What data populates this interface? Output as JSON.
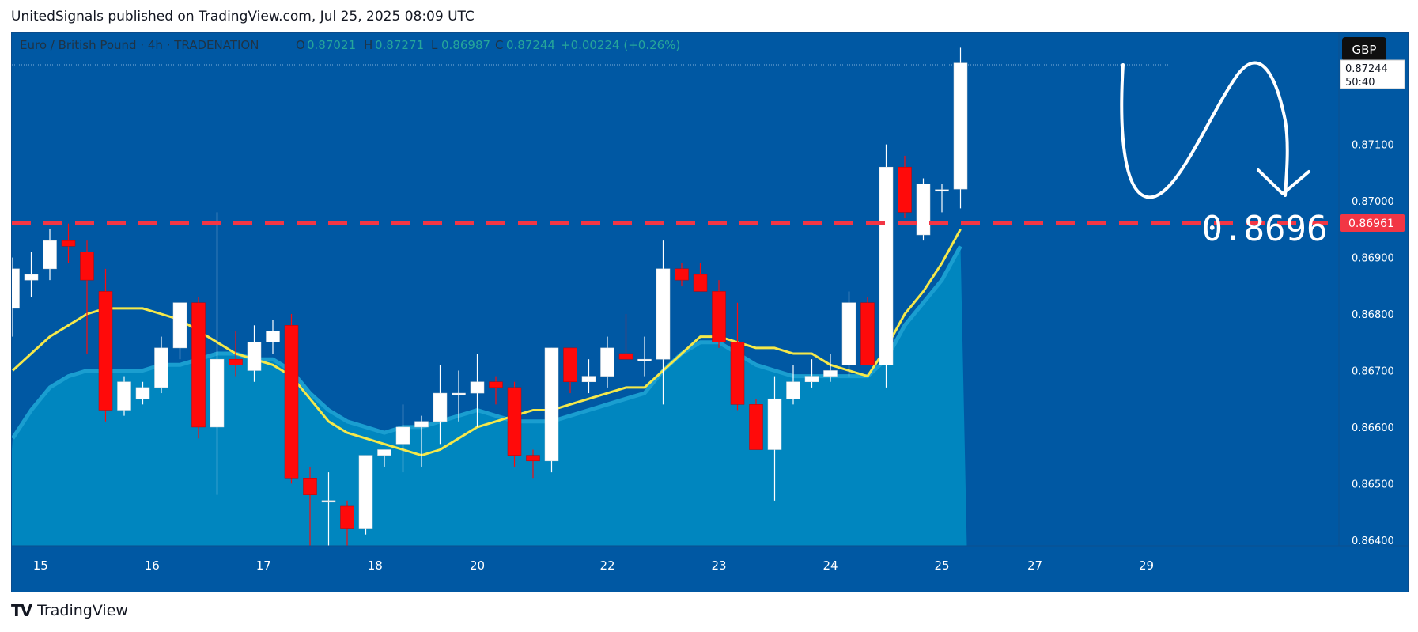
{
  "header": {
    "published_text": "UnitedSignals published on TradingView.com, Jul 25, 2025 08:09 UTC"
  },
  "legend": {
    "symbol": "Euro / British Pound · 4h · TRADENATION",
    "o_label": "O",
    "o_value": "0.87021",
    "h_label": "H",
    "h_value": "0.87271",
    "l_label": "L",
    "l_value": "0.86987",
    "c_label": "C",
    "c_value": "0.87244",
    "change": "+0.00224 (+0.26%)"
  },
  "currency_button": "GBP",
  "price_tag": {
    "price": "0.87244",
    "countdown": "50:40"
  },
  "level_tag": "0.86961",
  "annotation_text": "0.8696",
  "footer": {
    "logo_mark": "TV",
    "brand": "TradingView"
  },
  "colors": {
    "background": "#0058a3",
    "up_candle": "#ffffff",
    "down_candle": "#ff0a0a",
    "ma_line": "#f5e84a",
    "area_fill": "#0086bf",
    "area_line": "#1a9ed0",
    "level_line": "#f23645",
    "text_on_chart": "#1f3344",
    "axis_text": "#ffffff"
  },
  "chart_data": {
    "type": "candlestick",
    "y_ticks": [
      "0.86400",
      "0.86500",
      "0.86600",
      "0.86700",
      "0.86800",
      "0.86900",
      "0.87000",
      "0.87100"
    ],
    "ylim": [
      0.8639,
      0.8728
    ],
    "x_ticks": [
      "15",
      "16",
      "17",
      "18",
      "20",
      "22",
      "23",
      "24",
      "25",
      "27",
      "29"
    ],
    "candles": [
      {
        "o": 0.8681,
        "h": 0.869,
        "l": 0.8676,
        "c": 0.8688
      },
      {
        "o": 0.8686,
        "h": 0.8691,
        "l": 0.8683,
        "c": 0.8687
      },
      {
        "o": 0.8688,
        "h": 0.8695,
        "l": 0.8686,
        "c": 0.8693
      },
      {
        "o": 0.8693,
        "h": 0.8696,
        "l": 0.8689,
        "c": 0.8692
      },
      {
        "o": 0.8691,
        "h": 0.8693,
        "l": 0.8673,
        "c": 0.8686
      },
      {
        "o": 0.8684,
        "h": 0.8688,
        "l": 0.8661,
        "c": 0.8663
      },
      {
        "o": 0.8663,
        "h": 0.8669,
        "l": 0.8662,
        "c": 0.8668
      },
      {
        "o": 0.8665,
        "h": 0.8668,
        "l": 0.8664,
        "c": 0.8667
      },
      {
        "o": 0.8667,
        "h": 0.8676,
        "l": 0.8666,
        "c": 0.8674
      },
      {
        "o": 0.8674,
        "h": 0.8682,
        "l": 0.8672,
        "c": 0.8682
      },
      {
        "o": 0.8682,
        "h": 0.8683,
        "l": 0.8658,
        "c": 0.866
      },
      {
        "o": 0.866,
        "h": 0.8698,
        "l": 0.8648,
        "c": 0.8672
      },
      {
        "o": 0.8672,
        "h": 0.8677,
        "l": 0.8669,
        "c": 0.8671
      },
      {
        "o": 0.867,
        "h": 0.8678,
        "l": 0.8668,
        "c": 0.8675
      },
      {
        "o": 0.8675,
        "h": 0.8679,
        "l": 0.8673,
        "c": 0.8677
      },
      {
        "o": 0.8678,
        "h": 0.868,
        "l": 0.865,
        "c": 0.8651
      },
      {
        "o": 0.8651,
        "h": 0.8653,
        "l": 0.8639,
        "c": 0.8648
      },
      {
        "o": 0.8647,
        "h": 0.8652,
        "l": 0.8639,
        "c": 0.8647
      },
      {
        "o": 0.8646,
        "h": 0.8647,
        "l": 0.8639,
        "c": 0.8642
      },
      {
        "o": 0.8642,
        "h": 0.8655,
        "l": 0.8641,
        "c": 0.8655
      },
      {
        "o": 0.8655,
        "h": 0.8656,
        "l": 0.8653,
        "c": 0.8656
      },
      {
        "o": 0.8657,
        "h": 0.8664,
        "l": 0.8652,
        "c": 0.866
      },
      {
        "o": 0.866,
        "h": 0.8662,
        "l": 0.8653,
        "c": 0.8661
      },
      {
        "o": 0.8661,
        "h": 0.8671,
        "l": 0.8657,
        "c": 0.8666
      },
      {
        "o": 0.8666,
        "h": 0.867,
        "l": 0.8661,
        "c": 0.8666
      },
      {
        "o": 0.8666,
        "h": 0.8673,
        "l": 0.866,
        "c": 0.8668
      },
      {
        "o": 0.8668,
        "h": 0.8669,
        "l": 0.8664,
        "c": 0.8667
      },
      {
        "o": 0.8667,
        "h": 0.8668,
        "l": 0.8653,
        "c": 0.8655
      },
      {
        "o": 0.8655,
        "h": 0.8656,
        "l": 0.8651,
        "c": 0.8654
      },
      {
        "o": 0.8654,
        "h": 0.8674,
        "l": 0.8652,
        "c": 0.8674
      },
      {
        "o": 0.8674,
        "h": 0.8674,
        "l": 0.8666,
        "c": 0.8668
      },
      {
        "o": 0.8668,
        "h": 0.8672,
        "l": 0.8666,
        "c": 0.8669
      },
      {
        "o": 0.8669,
        "h": 0.8676,
        "l": 0.8667,
        "c": 0.8674
      },
      {
        "o": 0.8673,
        "h": 0.868,
        "l": 0.8672,
        "c": 0.8672
      },
      {
        "o": 0.8672,
        "h": 0.8676,
        "l": 0.8669,
        "c": 0.8672
      },
      {
        "o": 0.8672,
        "h": 0.8693,
        "l": 0.8664,
        "c": 0.8688
      },
      {
        "o": 0.8688,
        "h": 0.8689,
        "l": 0.8685,
        "c": 0.8686
      },
      {
        "o": 0.8687,
        "h": 0.8689,
        "l": 0.8684,
        "c": 0.8684
      },
      {
        "o": 0.8684,
        "h": 0.8686,
        "l": 0.8674,
        "c": 0.8675
      },
      {
        "o": 0.8675,
        "h": 0.8682,
        "l": 0.8663,
        "c": 0.8664
      },
      {
        "o": 0.8664,
        "h": 0.8665,
        "l": 0.8656,
        "c": 0.8656
      },
      {
        "o": 0.8656,
        "h": 0.8669,
        "l": 0.8647,
        "c": 0.8665
      },
      {
        "o": 0.8665,
        "h": 0.8671,
        "l": 0.8664,
        "c": 0.8668
      },
      {
        "o": 0.8668,
        "h": 0.8672,
        "l": 0.8667,
        "c": 0.8669
      },
      {
        "o": 0.8669,
        "h": 0.8673,
        "l": 0.8668,
        "c": 0.867
      },
      {
        "o": 0.8671,
        "h": 0.8684,
        "l": 0.8669,
        "c": 0.8682
      },
      {
        "o": 0.8682,
        "h": 0.8683,
        "l": 0.8671,
        "c": 0.8671
      },
      {
        "o": 0.8671,
        "h": 0.871,
        "l": 0.8667,
        "c": 0.8706
      },
      {
        "o": 0.8706,
        "h": 0.8708,
        "l": 0.8697,
        "c": 0.8698
      },
      {
        "o": 0.8694,
        "h": 0.8704,
        "l": 0.8693,
        "c": 0.8703
      },
      {
        "o": 0.8702,
        "h": 0.8703,
        "l": 0.8698,
        "c": 0.8702
      },
      {
        "o": 0.87021,
        "h": 0.87271,
        "l": 0.86987,
        "c": 0.87244
      }
    ],
    "ma": [
      0.867,
      0.8673,
      0.8676,
      0.8678,
      0.868,
      0.8681,
      0.8681,
      0.8681,
      0.868,
      0.8679,
      0.8677,
      0.8675,
      0.8673,
      0.8672,
      0.8671,
      0.8669,
      0.8665,
      0.8661,
      0.8659,
      0.8658,
      0.8657,
      0.8656,
      0.8655,
      0.8656,
      0.8658,
      0.866,
      0.8661,
      0.8662,
      0.8663,
      0.8663,
      0.8664,
      0.8665,
      0.8666,
      0.8667,
      0.8667,
      0.867,
      0.8673,
      0.8676,
      0.8676,
      0.8675,
      0.8674,
      0.8674,
      0.8673,
      0.8673,
      0.8671,
      0.867,
      0.8669,
      0.8674,
      0.868,
      0.8684,
      0.8689,
      0.8695
    ],
    "area": [
      0.8658,
      0.8663,
      0.8667,
      0.8669,
      0.867,
      0.867,
      0.867,
      0.867,
      0.8671,
      0.8671,
      0.8672,
      0.8673,
      0.8673,
      0.8672,
      0.8672,
      0.867,
      0.8666,
      0.8663,
      0.8661,
      0.866,
      0.8659,
      0.866,
      0.866,
      0.8661,
      0.8662,
      0.8663,
      0.8662,
      0.8661,
      0.8661,
      0.8661,
      0.8662,
      0.8663,
      0.8664,
      0.8665,
      0.8666,
      0.867,
      0.8673,
      0.8675,
      0.8675,
      0.8673,
      0.8671,
      0.867,
      0.8669,
      0.8669,
      0.8669,
      0.8669,
      0.8669,
      0.8672,
      0.8678,
      0.8682,
      0.8686,
      0.8692
    ],
    "level": 0.86961
  }
}
